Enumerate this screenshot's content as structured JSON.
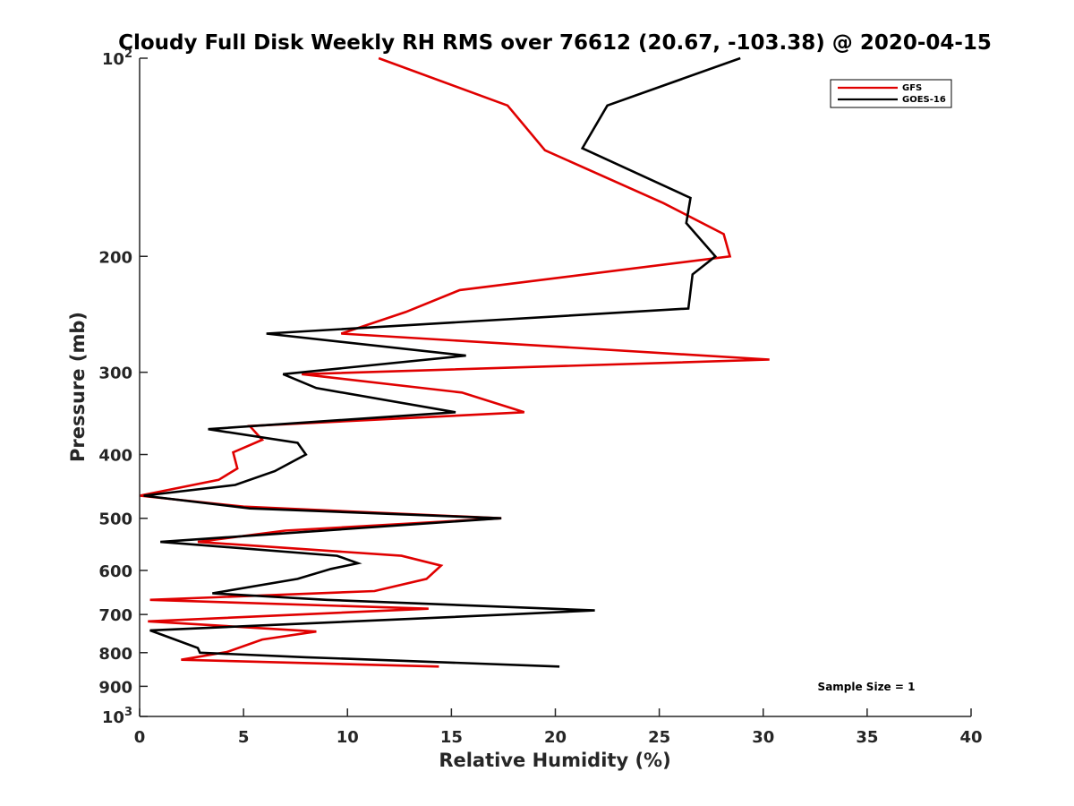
{
  "chart_data": {
    "type": "line",
    "title": "Cloudy Full Disk Weekly RH RMS over 76612 (20.67, -103.38) @ 2020-04-15",
    "xlabel": "Relative Humidity (%)",
    "ylabel": "Pressure (mb)",
    "xlim": [
      0,
      40
    ],
    "ylim": [
      100,
      1000
    ],
    "yscale": "log",
    "y_reversed": true,
    "xticks": [
      0,
      5,
      10,
      15,
      20,
      25,
      30,
      35,
      40
    ],
    "xtick_labels": [
      "0",
      "5",
      "10",
      "15",
      "20",
      "25",
      "30",
      "35",
      "40"
    ],
    "ytick_values": [
      200,
      300,
      400,
      500,
      600,
      700,
      800,
      900
    ],
    "ytick_labels": [
      "200",
      "300",
      "400",
      "500",
      "600",
      "700",
      "800",
      "900"
    ],
    "ytick_power_labels": [
      {
        "value": 100,
        "base": "10",
        "exp": "2"
      },
      {
        "value": 1000,
        "base": "10",
        "exp": "3"
      }
    ],
    "legend_position": "top-right",
    "annotation": "Sample Size = 1",
    "series": [
      {
        "name": "GFS",
        "color": "#e00000",
        "points": [
          [
            11.5,
            100
          ],
          [
            17.7,
            118
          ],
          [
            19.5,
            138
          ],
          [
            25.2,
            166
          ],
          [
            28.1,
            185
          ],
          [
            28.4,
            200
          ],
          [
            15.4,
            225
          ],
          [
            12.8,
            243
          ],
          [
            9.7,
            262
          ],
          [
            30.3,
            287
          ],
          [
            7.8,
            302
          ],
          [
            15.5,
            322
          ],
          [
            18.5,
            345
          ],
          [
            5.3,
            362
          ],
          [
            5.9,
            380
          ],
          [
            4.5,
            397
          ],
          [
            4.7,
            420
          ],
          [
            3.8,
            437
          ],
          [
            0.0,
            462
          ],
          [
            5.0,
            480
          ],
          [
            17.4,
            500
          ],
          [
            7.0,
            522
          ],
          [
            2.8,
            543
          ],
          [
            12.6,
            570
          ],
          [
            14.5,
            590
          ],
          [
            13.8,
            618
          ],
          [
            11.3,
            645
          ],
          [
            0.5,
            665
          ],
          [
            13.9,
            686
          ],
          [
            0.4,
            717
          ],
          [
            8.5,
            743
          ],
          [
            5.9,
            764
          ],
          [
            4.2,
            798
          ],
          [
            2.0,
            820
          ],
          [
            14.4,
            840
          ]
        ]
      },
      {
        "name": "GOES-16",
        "color": "#000000",
        "points": [
          [
            28.9,
            100
          ],
          [
            22.5,
            118
          ],
          [
            21.3,
            137
          ],
          [
            26.5,
            163
          ],
          [
            26.3,
            178
          ],
          [
            27.7,
            200
          ],
          [
            26.6,
            213
          ],
          [
            26.4,
            240
          ],
          [
            6.1,
            262
          ],
          [
            15.7,
            283
          ],
          [
            6.9,
            302
          ],
          [
            8.5,
            317
          ],
          [
            15.2,
            345
          ],
          [
            3.3,
            366
          ],
          [
            7.6,
            384
          ],
          [
            8.0,
            400
          ],
          [
            6.5,
            424
          ],
          [
            4.6,
            445
          ],
          [
            0.2,
            462
          ],
          [
            5.3,
            483
          ],
          [
            17.4,
            500
          ],
          [
            1.0,
            543
          ],
          [
            9.5,
            570
          ],
          [
            10.5,
            585
          ],
          [
            9.2,
            597
          ],
          [
            7.6,
            618
          ],
          [
            3.5,
            650
          ],
          [
            9.0,
            665
          ],
          [
            21.9,
            690
          ],
          [
            17.8,
            700
          ],
          [
            0.5,
            740
          ],
          [
            1.5,
            760
          ],
          [
            2.8,
            787
          ],
          [
            2.9,
            800
          ],
          [
            8.0,
            813
          ],
          [
            20.2,
            840
          ]
        ]
      }
    ]
  }
}
